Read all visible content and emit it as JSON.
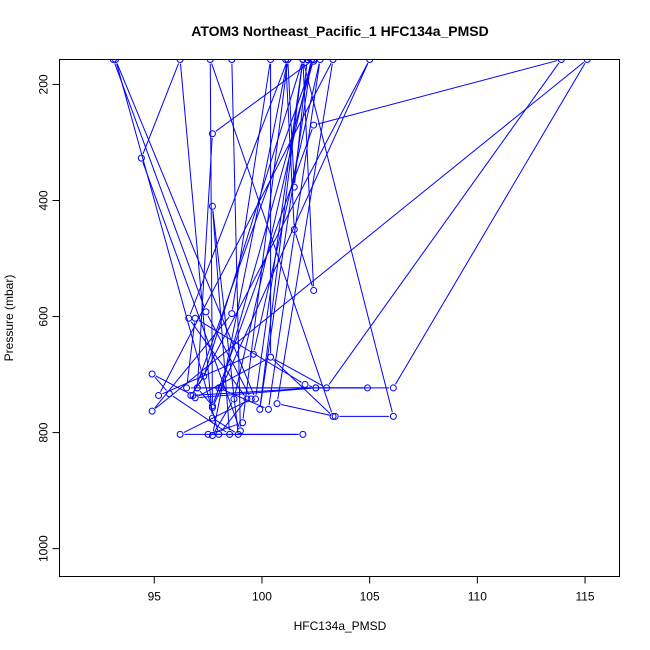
{
  "chart_data": {
    "type": "line",
    "title": "ATOM3 Northeast_Pacific_1 HFC134a_PMSD",
    "xlabel": "HFC134a_PMSD",
    "ylabel": "Pressure (mbar)",
    "xlim": [
      90.6,
      116.6
    ],
    "ylim": [
      1048,
      157
    ],
    "y_reversed": true,
    "x_ticks": [
      95,
      100,
      105,
      110,
      115
    ],
    "y_ticks": [
      200,
      400,
      600,
      800,
      1000
    ],
    "x_tick_labels": [
      "95",
      "100",
      "105",
      "110",
      "115"
    ],
    "y_tick_labels": [
      "200",
      "400",
      "600",
      "800",
      "1000"
    ],
    "grid": false,
    "legend": "none",
    "colors": {
      "series": "#0000ff",
      "axis": "#000000"
    },
    "series": [
      {
        "points": [
          [
            93.1,
            157
          ],
          [
            97.4,
            592
          ],
          [
            99.5,
            742
          ],
          [
            96.2,
            803
          ],
          [
            101.9,
            803
          ],
          [
            97.5,
            803
          ],
          [
            99.1,
            783
          ],
          [
            101.2,
            157
          ],
          [
            97.7,
            805
          ],
          [
            98.7,
            742
          ],
          [
            102.3,
            157
          ],
          [
            99.9,
            760
          ],
          [
            101.9,
            157
          ],
          [
            99.7,
            742
          ],
          [
            93.2,
            157
          ],
          [
            98.0,
            803
          ],
          [
            99.3,
            742
          ],
          [
            96.6,
            603
          ],
          [
            101.2,
            157
          ],
          [
            101.5,
            377
          ],
          [
            102.1,
            157
          ],
          [
            101.1,
            157
          ],
          [
            101.5,
            450
          ],
          [
            102.4,
            555
          ],
          [
            101.9,
            157
          ],
          [
            102.4,
            160
          ],
          [
            102.4,
            157
          ],
          [
            98.1,
            723
          ],
          [
            98.0,
            723
          ],
          [
            100.3,
            760
          ],
          [
            102.7,
            157
          ],
          [
            99.6,
            665
          ],
          [
            95.2,
            736
          ],
          [
            103.3,
            157
          ],
          [
            100.7,
            750
          ],
          [
            103.4,
            772
          ],
          [
            106.1,
            772
          ],
          [
            101.9,
            157
          ],
          [
            97.3,
            703
          ],
          [
            96.7,
            736
          ],
          [
            102.5,
            723
          ],
          [
            106.1,
            723
          ],
          [
            115.1,
            157
          ],
          [
            94.9,
            763
          ],
          [
            98.6,
            595
          ],
          [
            100.4,
            157
          ],
          [
            100.4,
            670
          ],
          [
            103.3,
            772
          ],
          [
            97.6,
            157
          ],
          [
            97.7,
            757
          ],
          [
            105.0,
            157
          ],
          [
            97.0,
            723
          ],
          [
            104.9,
            723
          ],
          [
            96.5,
            723
          ],
          [
            96.9,
            603
          ],
          [
            102.0,
            717
          ],
          [
            102.5,
            723
          ],
          [
            96.9,
            740
          ],
          [
            100.4,
            670
          ],
          [
            103.0,
            723
          ],
          [
            113.9,
            157
          ],
          [
            102.4,
            270
          ],
          [
            97.7,
            754
          ],
          [
            97.0,
            723
          ],
          [
            97.7,
            285
          ],
          [
            102.4,
            157
          ],
          [
            96.8,
            736
          ],
          [
            94.9,
            699
          ],
          [
            95.7,
            733
          ],
          [
            98.5,
            803
          ],
          [
            97.7,
            410
          ],
          [
            98.9,
            803
          ],
          [
            97.7,
            775
          ],
          [
            96.2,
            157
          ],
          [
            94.4,
            327
          ],
          [
            99.0,
            797
          ],
          [
            98.6,
            157
          ]
        ]
      }
    ]
  }
}
